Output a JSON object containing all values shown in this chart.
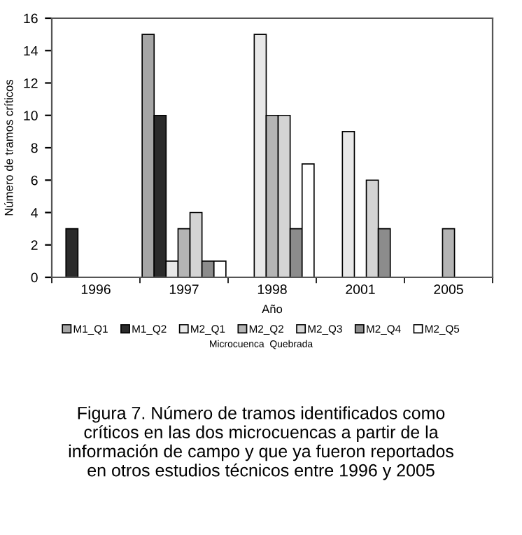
{
  "chart_data": {
    "type": "bar",
    "xlabel": "Año",
    "ylabel": "Número de tramos críticos",
    "legend_title": "Microcuenca  Quebrada",
    "categories": [
      "1996",
      "1997",
      "1998",
      "2001",
      "2005"
    ],
    "series": [
      {
        "name": "M1_Q1",
        "color": "#a6a6a6",
        "values": [
          0,
          15,
          0,
          0,
          0
        ]
      },
      {
        "name": "M1_Q2",
        "color": "#2b2b2b",
        "values": [
          3,
          10,
          0,
          0,
          0
        ]
      },
      {
        "name": "M2_Q1",
        "color": "#e8e8e8",
        "values": [
          0,
          1,
          15,
          9,
          0
        ]
      },
      {
        "name": "M2_Q2",
        "color": "#b4b4b4",
        "values": [
          0,
          3,
          10,
          0,
          3
        ]
      },
      {
        "name": "M2_Q3",
        "color": "#d4d4d4",
        "values": [
          0,
          4,
          10,
          6,
          0
        ]
      },
      {
        "name": "M2_Q4",
        "color": "#8c8c8c",
        "values": [
          0,
          1,
          3,
          3,
          0
        ]
      },
      {
        "name": "M2_Q5",
        "color": "#ffffff",
        "values": [
          0,
          1,
          7,
          0,
          0
        ]
      }
    ],
    "ylim": [
      0,
      16
    ],
    "yticks": [
      0,
      2,
      4,
      6,
      8,
      10,
      12,
      14,
      16
    ],
    "grid": false,
    "legend": "bottom",
    "annotations": [
      "Figura 7. Número de tramos identificados como\ncríticos en las dos microcuencas a partir de la\ninformación de campo y que ya fueron reportados\nen otros estudios técnicos entre 1996 y 2005"
    ]
  }
}
